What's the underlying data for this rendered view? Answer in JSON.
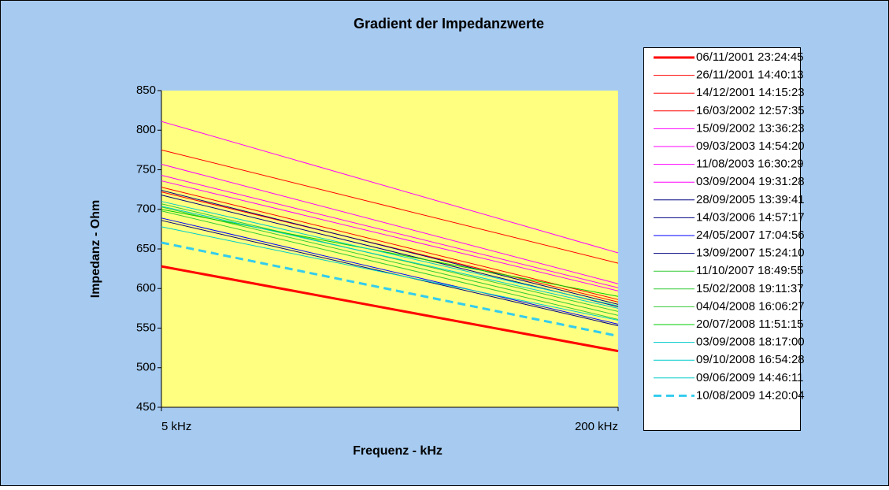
{
  "chart_data": {
    "type": "line",
    "title": "Gradient der Impedanzwerte",
    "x_label": "Frequenz - kHz",
    "y_label": "Impedanz - Ohm",
    "categories": [
      "5 kHz",
      "200 kHz"
    ],
    "ylim": [
      450,
      850
    ],
    "yticks": [
      450,
      500,
      550,
      600,
      650,
      700,
      750,
      800,
      850
    ],
    "grid": false,
    "legend": "right",
    "series": [
      {
        "name": "06/11/2001 23:24:45",
        "color": "#ff0000",
        "width": 3,
        "dash": false,
        "values": [
          628,
          521
        ]
      },
      {
        "name": "26/11/2001 14:40:13",
        "color": "#ff0000",
        "width": 1,
        "dash": false,
        "values": [
          775,
          632
        ]
      },
      {
        "name": "14/12/2001 14:15:23",
        "color": "#ff0000",
        "width": 1,
        "dash": false,
        "values": [
          728,
          586
        ]
      },
      {
        "name": "16/03/2002 12:57:35",
        "color": "#ff0000",
        "width": 1,
        "dash": false,
        "values": [
          722,
          583
        ]
      },
      {
        "name": "15/09/2002 13:36:23",
        "color": "#ff00ff",
        "width": 1,
        "dash": false,
        "values": [
          811,
          645
        ]
      },
      {
        "name": "09/03/2003 14:54:20",
        "color": "#ff00ff",
        "width": 1,
        "dash": false,
        "values": [
          757,
          606
        ]
      },
      {
        "name": "11/08/2003 16:30:29",
        "color": "#ff00ff",
        "width": 1,
        "dash": false,
        "values": [
          743,
          601
        ]
      },
      {
        "name": "03/09/2004 19:31:28",
        "color": "#ff00ff",
        "width": 1,
        "dash": false,
        "values": [
          736,
          597
        ]
      },
      {
        "name": "28/09/2005 13:39:41",
        "color": "#000080",
        "width": 1,
        "dash": false,
        "values": [
          724,
          580
        ]
      },
      {
        "name": "14/03/2006 14:57:17",
        "color": "#000080",
        "width": 1,
        "dash": false,
        "values": [
          718,
          577
        ]
      },
      {
        "name": "24/05/2007 17:04:56",
        "color": "#0000ff",
        "width": 1,
        "dash": false,
        "values": [
          689,
          555
        ]
      },
      {
        "name": "13/09/2007 15:24:10",
        "color": "#000080",
        "width": 1,
        "dash": false,
        "values": [
          686,
          553
        ]
      },
      {
        "name": "11/10/2007 18:49:55",
        "color": "#33cc33",
        "width": 1,
        "dash": false,
        "values": [
          707,
          571
        ]
      },
      {
        "name": "15/02/2008 19:11:37",
        "color": "#33cc33",
        "width": 1,
        "dash": false,
        "values": [
          703,
          566
        ]
      },
      {
        "name": "04/04/2008 16:06:27",
        "color": "#33cc33",
        "width": 1,
        "dash": false,
        "values": [
          698,
          561
        ]
      },
      {
        "name": "20/07/2008 11:51:15",
        "color": "#00cc00",
        "width": 1,
        "dash": false,
        "values": [
          700,
          590
        ]
      },
      {
        "name": "03/09/2008 18:17:00",
        "color": "#00cccc",
        "width": 1,
        "dash": false,
        "values": [
          710,
          578
        ]
      },
      {
        "name": "09/10/2008 16:54:28",
        "color": "#00cccc",
        "width": 1,
        "dash": false,
        "values": [
          704,
          575
        ]
      },
      {
        "name": "09/06/2009 14:46:11",
        "color": "#00cccc",
        "width": 1,
        "dash": false,
        "values": [
          678,
          560
        ]
      },
      {
        "name": "10/08/2009 14:20:04",
        "color": "#33ccee",
        "width": 3,
        "dash": true,
        "values": [
          658,
          540
        ]
      }
    ]
  }
}
